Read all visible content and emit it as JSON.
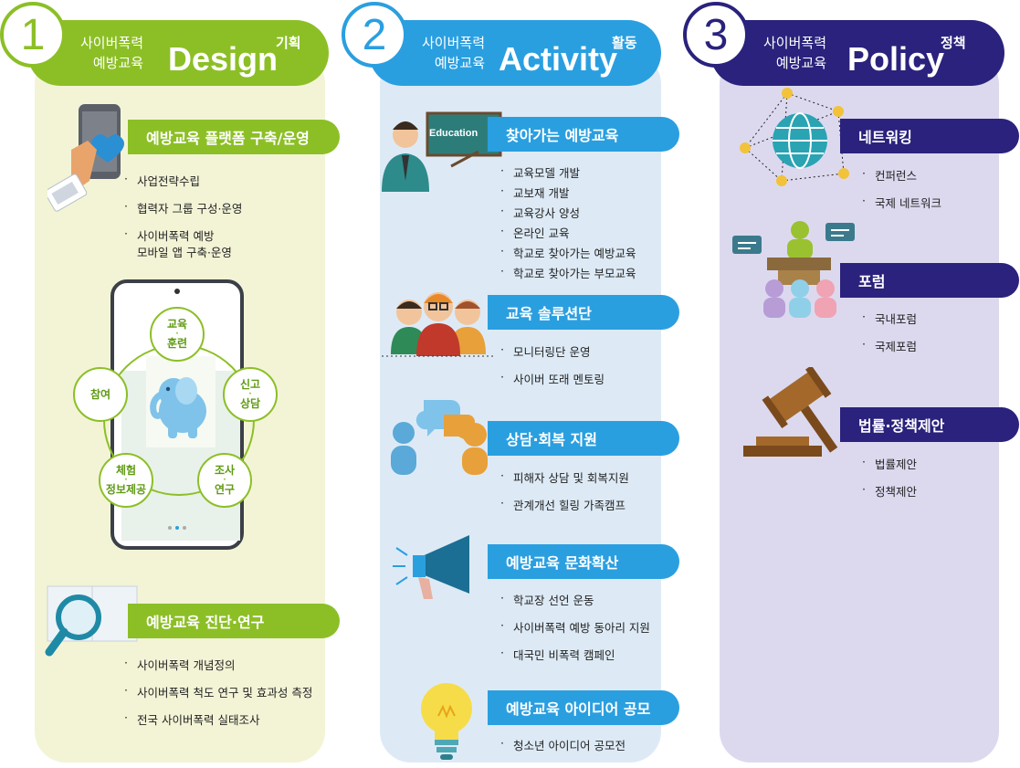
{
  "columns": [
    {
      "number": "1",
      "subtitle_line1": "사이버폭력",
      "subtitle_line2": "예방교육",
      "title": "Design",
      "title_kor": "기획",
      "sections": [
        {
          "label": "예방교육 플랫폼 구축/운영",
          "items": [
            "사업전략수립",
            "협력자 그룹 구성·운영",
            "사이버폭력 예방",
            "모바일 앱 구축·운영"
          ]
        },
        {
          "label": "예방교육 진단·연구",
          "items": [
            "사이버폭력 개념정의",
            "사이버폭력 척도 연구 및 효과성 측정",
            "전국 사이버폭력 실태조사"
          ]
        }
      ]
    },
    {
      "number": "2",
      "subtitle_line1": "사이버폭력",
      "subtitle_line2": "예방교육",
      "title": "Activity",
      "title_kor": "활동",
      "sections": [
        {
          "label": "찾아가는 예방교육",
          "items": [
            "교육모델 개발",
            "교보재 개발",
            "교육강사 양성",
            "온라인 교육",
            "학교로 찾아가는 예방교육",
            "학교로 찾아가는 부모교육"
          ]
        },
        {
          "label": "교육 솔루션단",
          "items": [
            "모니터링단 운영",
            "사이버 또래 멘토링"
          ]
        },
        {
          "label": "상담·회복 지원",
          "items": [
            "피해자 상담 및 회복지원",
            "관계개선 힐링 가족캠프"
          ]
        },
        {
          "label": "예방교육 문화확산",
          "items": [
            "학교장 선언 운동",
            "사이버폭력 예방 동아리 지원",
            "대국민 비폭력 캠페인"
          ]
        },
        {
          "label": "예방교육 아이디어 공모",
          "items": [
            "청소년 아이디어 공모전"
          ]
        }
      ]
    },
    {
      "number": "3",
      "subtitle_line1": "사이버폭력",
      "subtitle_line2": "예방교육",
      "title": "Policy",
      "title_kor": "정책",
      "sections": [
        {
          "label": "네트워킹",
          "items": [
            "컨퍼런스",
            "국제 네트워크"
          ]
        },
        {
          "label": "포럼",
          "items": [
            "국내포럼",
            "국제포럼"
          ]
        },
        {
          "label": "법률·정책제안",
          "items": [
            "법률제안",
            "정책제안"
          ]
        }
      ]
    }
  ],
  "phone_app": {
    "circles": [
      {
        "top": "교육",
        "bottom": "훈련"
      },
      {
        "top": "신고",
        "bottom": "상담"
      },
      {
        "top": "조사",
        "bottom": "연구"
      },
      {
        "top": "체험",
        "bottom": "정보제공"
      },
      {
        "top": "참여",
        "bottom": ""
      }
    ]
  },
  "education_board": "Education",
  "colors": {
    "green": "#8cbf26",
    "blue": "#2a9fe0",
    "navy": "#2a227c"
  }
}
